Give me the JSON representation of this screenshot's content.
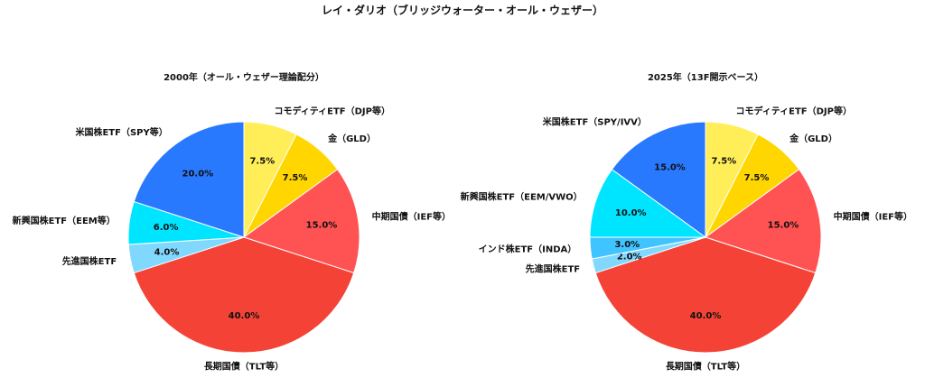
{
  "title": "レイ・ダリオ（ブリッジウォーター・オール・ウェザー）",
  "chart_data": [
    {
      "type": "pie",
      "title": "2000年（オール・ウェザー理論配分）",
      "categories": [
        "コモディティETF（DJP等）",
        "金（GLD）",
        "中期国債（IEF等）",
        "長期国債（TLT等）",
        "先進国株ETF",
        "新興国株ETF（EEM等）",
        "米国株ETF（SPY等）"
      ],
      "values": [
        7.5,
        7.5,
        15.0,
        40.0,
        4.0,
        6.0,
        20.0
      ],
      "value_labels": [
        "7.5%",
        "7.5%",
        "15.0%",
        "40.0%",
        "4.0%",
        "6.0%",
        "20.0%"
      ],
      "colors": [
        "#ffee58",
        "#ffd600",
        "#ff5252",
        "#f44336",
        "#80d8ff",
        "#00e5ff",
        "#2979ff"
      ]
    },
    {
      "type": "pie",
      "title": "2025年（13F開示ベース）",
      "categories": [
        "コモディティETF（DJP等）",
        "金（GLD）",
        "中期国債（IEF等）",
        "長期国債（TLT等）",
        "先進国株ETF",
        "インド株ETF（INDA）",
        "新興国株ETF（EEM/VWO）",
        "米国株ETF（SPY/IVV）"
      ],
      "values": [
        7.5,
        7.5,
        15.0,
        40.0,
        2.0,
        3.0,
        10.0,
        15.0
      ],
      "value_labels": [
        "7.5%",
        "7.5%",
        "15.0%",
        "40.0%",
        "2.0%",
        "3.0%",
        "10.0%",
        "15.0%"
      ],
      "colors": [
        "#ffee58",
        "#ffd600",
        "#ff5252",
        "#f44336",
        "#80d8ff",
        "#40c4ff",
        "#00e5ff",
        "#2979ff"
      ]
    }
  ]
}
